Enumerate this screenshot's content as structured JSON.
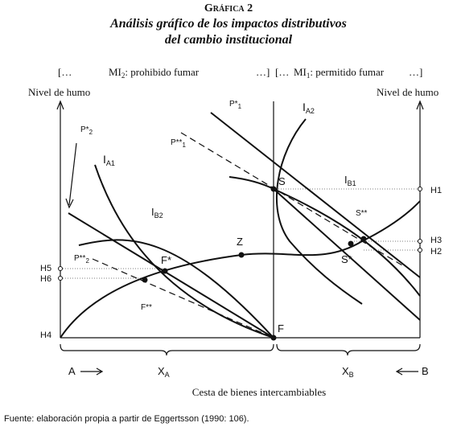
{
  "header": {
    "kicker": "Gráfica 2",
    "title_lines": [
      "Análisis gráfico de los impactos distributivos",
      "del cambio institucional"
    ]
  },
  "regimes": [
    {
      "open": "[…",
      "name": "MI",
      "sub": "2",
      "desc": ": prohibido fumar",
      "close": "…]"
    },
    {
      "open": "[…",
      "name": "MI",
      "sub": "1",
      "desc": ": permitido fumar",
      "close": "…]"
    }
  ],
  "axes": {
    "y_left": "Nivel de humo",
    "y_right": "Nivel de humo",
    "x": "Cesta de bienes intercambiables"
  },
  "levels": [
    "H1",
    "H3",
    "H2",
    "H5",
    "H6",
    "H4"
  ],
  "points": [
    "S",
    "F",
    "Z",
    "F*",
    "F**",
    "S*",
    "S**"
  ],
  "curves": [
    {
      "main": "I",
      "sub": "A1"
    },
    {
      "main": "I",
      "sub": "A2"
    },
    {
      "main": "I",
      "sub": "B1"
    },
    {
      "main": "I",
      "sub": "B2"
    },
    {
      "main": "P*",
      "sub": "1"
    },
    {
      "main": "P**",
      "sub": "1"
    },
    {
      "main": "P*",
      "sub": "2"
    },
    {
      "main": "P**",
      "sub": "2"
    }
  ],
  "bottom": {
    "a": "A",
    "xa": {
      "main": "X",
      "sub": "A"
    },
    "xb": {
      "main": "X",
      "sub": "B"
    },
    "b": "B"
  },
  "source": "Fuente: elaboración propia a partir de Eggertsson (1990: 106)."
}
